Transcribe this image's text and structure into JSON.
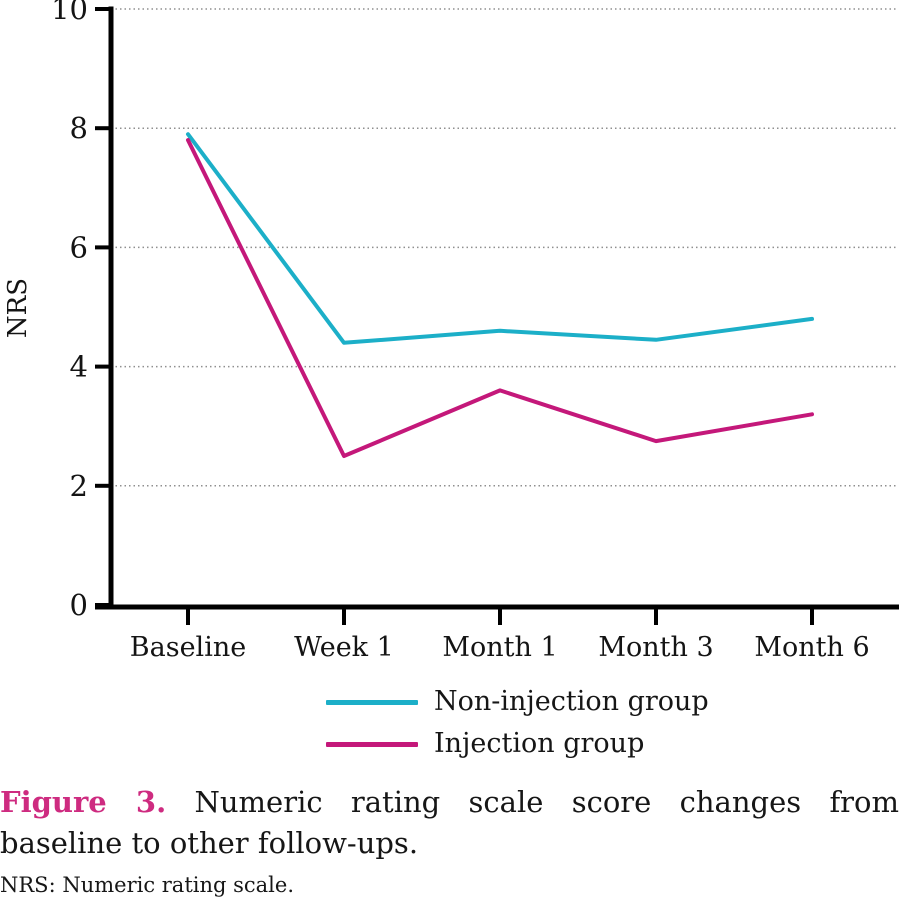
{
  "figure": {
    "caption_label": "Figure 3.",
    "caption_line1_rest": "Numeric rating scale score changes from",
    "caption_line2": "baseline to other follow-ups.",
    "footnote": "NRS: Numeric rating scale.",
    "caption_label_color": "#ce2b80",
    "caption_text_color": "#161616"
  },
  "chart_data": {
    "type": "line",
    "title": "",
    "xlabel": "",
    "ylabel": "NRS",
    "categories": [
      "Baseline",
      "Week 1",
      "Month 1",
      "Month 3",
      "Month 6"
    ],
    "yticks": [
      0,
      2,
      4,
      6,
      8,
      10
    ],
    "ylim": [
      0,
      10
    ],
    "grid": "horizontal-dotted",
    "gridline_color": "#8f8f8f",
    "axis_color": "#000000",
    "legend_position": "below-center",
    "series": [
      {
        "name": "Non-injection group",
        "color": "#1cafc8",
        "values": [
          7.9,
          4.4,
          4.6,
          4.45,
          4.8
        ]
      },
      {
        "name": "Injection group",
        "color": "#c4187a",
        "values": [
          7.8,
          2.5,
          3.6,
          2.75,
          3.2
        ]
      }
    ]
  }
}
